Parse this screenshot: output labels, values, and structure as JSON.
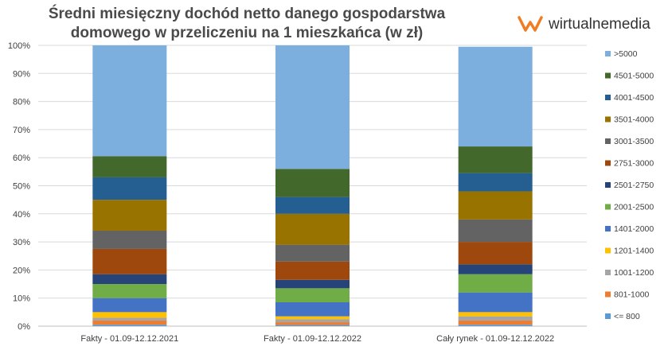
{
  "brand": {
    "name": "wirtualnemedia",
    "color": "#f07c24"
  },
  "chart_data": {
    "type": "bar",
    "stacked": true,
    "percent": true,
    "title": "Średni miesięczny dochód netto danego gospodarstwa domowego w przeliczeniu na 1 mieszkańca (w zł)",
    "title_lines": [
      "Średni miesięczny dochód netto danego gospodarstwa",
      "domowego w przeliczeniu na 1 mieszkańca (w zł)"
    ],
    "categories": [
      "Fakty - 01.09-12.12.2021",
      "Fakty - 01.09-12.12.2022",
      "Cały rynek - 01.09-12.12.2022"
    ],
    "ylim": [
      0,
      100
    ],
    "yticks": [
      "0%",
      "10%",
      "20%",
      "30%",
      "40%",
      "50%",
      "60%",
      "70%",
      "80%",
      "90%",
      "100%"
    ],
    "legend_position": "right",
    "series": [
      {
        "name": "<= 800",
        "color": "#5b9bd5",
        "values": [
          0.5,
          0.4,
          0.5
        ]
      },
      {
        "name": "801-1000",
        "color": "#ed7d31",
        "values": [
          1.5,
          1.0,
          1.5
        ]
      },
      {
        "name": "1001-1200",
        "color": "#a5a5a5",
        "values": [
          1.0,
          1.1,
          1.5
        ]
      },
      {
        "name": "1201-1400",
        "color": "#ffc000",
        "values": [
          2.0,
          1.0,
          1.5
        ]
      },
      {
        "name": "1401-2000",
        "color": "#4472c4",
        "values": [
          5.0,
          5.0,
          7.0
        ]
      },
      {
        "name": "2001-2500",
        "color": "#70ad47",
        "values": [
          5.0,
          5.0,
          6.5
        ]
      },
      {
        "name": "2501-2750",
        "color": "#264478",
        "values": [
          3.5,
          3.0,
          3.5
        ]
      },
      {
        "name": "2751-3000",
        "color": "#9e480e",
        "values": [
          9.0,
          6.5,
          8.0
        ]
      },
      {
        "name": "3001-3500",
        "color": "#636363",
        "values": [
          6.5,
          6.0,
          8.0
        ]
      },
      {
        "name": "3501-4000",
        "color": "#997300",
        "values": [
          11.0,
          11.0,
          10.0
        ]
      },
      {
        "name": "4001-4500",
        "color": "#255e91",
        "values": [
          8.0,
          6.0,
          6.5
        ]
      },
      {
        "name": "4501-5000",
        "color": "#43682b",
        "values": [
          7.5,
          10.0,
          9.5
        ]
      },
      {
        "name": ">5000",
        "color": "#7cafdd",
        "values": [
          39.5,
          44.0,
          35.5
        ]
      }
    ]
  }
}
